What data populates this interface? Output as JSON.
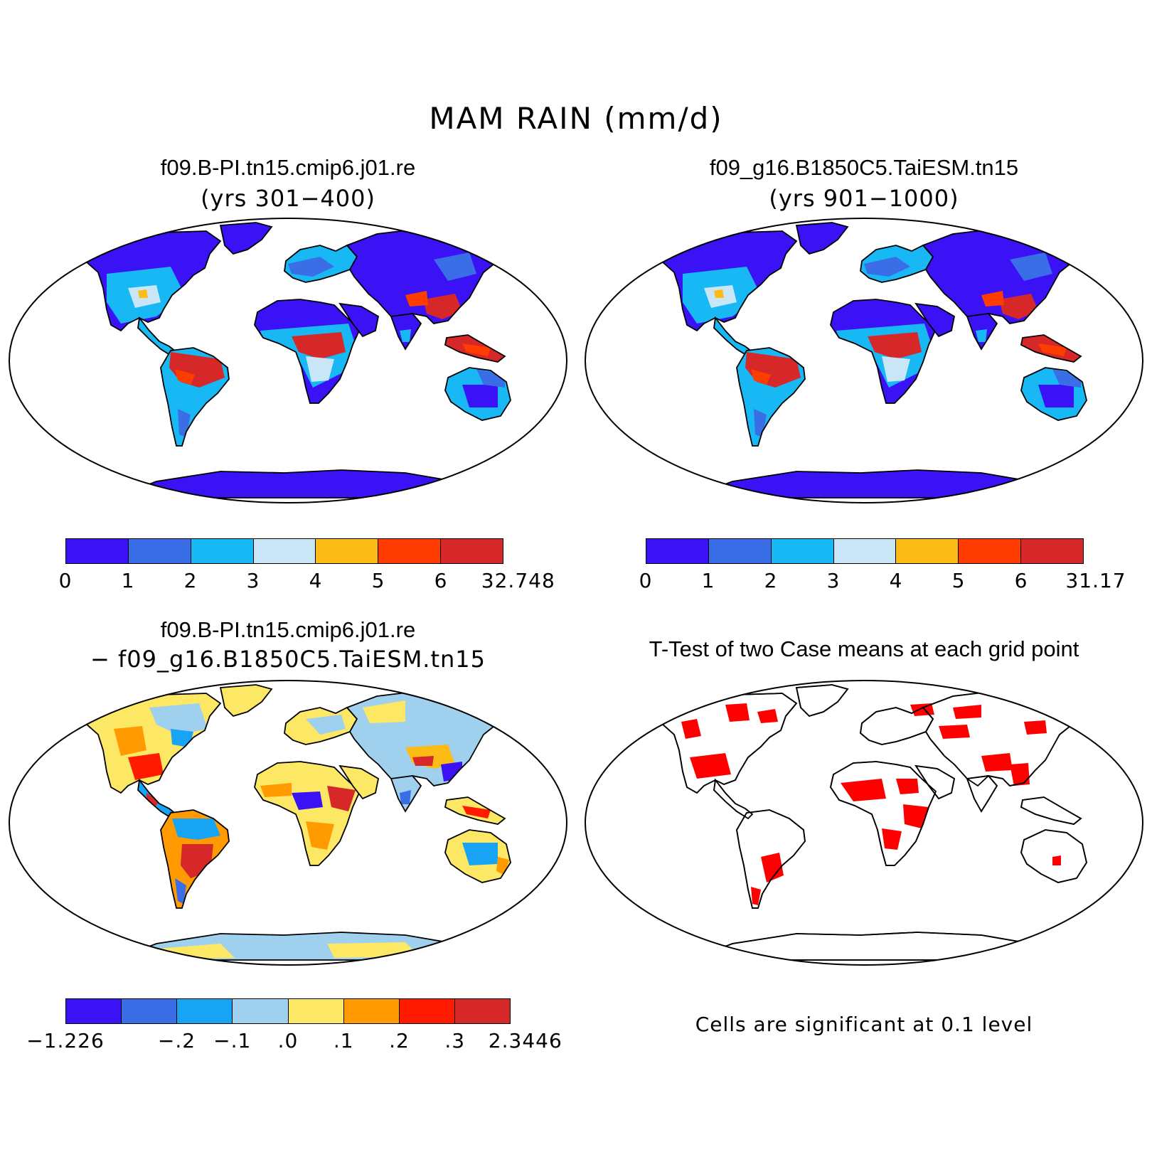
{
  "figure": {
    "title": "MAM RAIN (mm/d)"
  },
  "panels": [
    {
      "title": "f09.B-PI.tn15.cmip6.j01.re",
      "subtitle": "(yrs 301−400)",
      "colorbar": {
        "colors": [
          "#3b12f5",
          "#3a6ee6",
          "#18b8f5",
          "#c8e6f6",
          "#fdbb15",
          "#ff3d00",
          "#d62828"
        ],
        "labels": [
          "0",
          "1",
          "2",
          "3",
          "4",
          "5",
          "6",
          "32.748"
        ]
      }
    },
    {
      "title": "f09_g16.B1850C5.TaiESM.tn15",
      "subtitle": "(yrs 901−1000)",
      "colorbar": {
        "colors": [
          "#3b12f5",
          "#3a6ee6",
          "#18b8f5",
          "#c8e6f6",
          "#fdbb15",
          "#ff3d00",
          "#d62828"
        ],
        "labels": [
          "0",
          "1",
          "2",
          "3",
          "4",
          "5",
          "6",
          "31.17"
        ]
      }
    },
    {
      "title": "f09.B-PI.tn15.cmip6.j01.re",
      "subtitle": "− f09_g16.B1850C5.TaiESM.tn15",
      "colorbar": {
        "colors": [
          "#3b12f5",
          "#3a6ee6",
          "#18a4f5",
          "#9fd0ee",
          "#fde866",
          "#ff9b00",
          "#ff1a00",
          "#d62828"
        ],
        "labels": [
          "−1.226",
          "",
          "−.2",
          "−.1",
          ".0",
          ".1",
          ".2",
          ".3",
          "2.3446"
        ]
      }
    },
    {
      "title": "T-Test of two Case means at each grid point",
      "note": "Cells are significant at 0.1 level",
      "sig_color": "#ff0000"
    }
  ]
}
